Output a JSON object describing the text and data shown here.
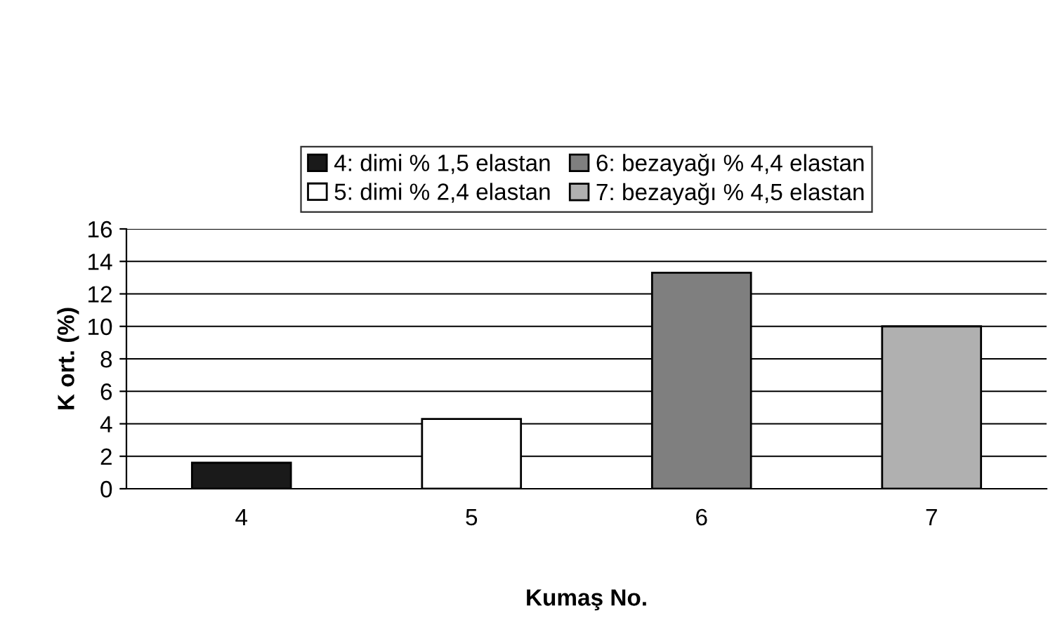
{
  "chart_data": {
    "type": "bar",
    "xlabel": "Kumaş No.",
    "ylabel": "K ort. (%)",
    "categories": [
      "4",
      "5",
      "6",
      "7"
    ],
    "series": [
      {
        "name": "4: dimi % 1,5 elastan",
        "color": "#1a1a1a",
        "values": [
          1.6,
          null,
          null,
          null
        ]
      },
      {
        "name": "5: dimi % 2,4 elastan",
        "color": "#ffffff",
        "values": [
          null,
          4.3,
          null,
          null
        ]
      },
      {
        "name": "6: bezayağı % 4,4 elastan",
        "color": "#7f7f7f",
        "values": [
          null,
          null,
          13.3,
          null
        ]
      },
      {
        "name": "7: bezayağı % 4,5 elastan",
        "color": "#b0b0b0",
        "values": [
          null,
          null,
          null,
          10.0
        ]
      }
    ],
    "ylim": [
      0,
      16
    ],
    "yticks": [
      0,
      2,
      4,
      6,
      8,
      10,
      12,
      14,
      16
    ],
    "grid": "y",
    "legend": "top"
  }
}
